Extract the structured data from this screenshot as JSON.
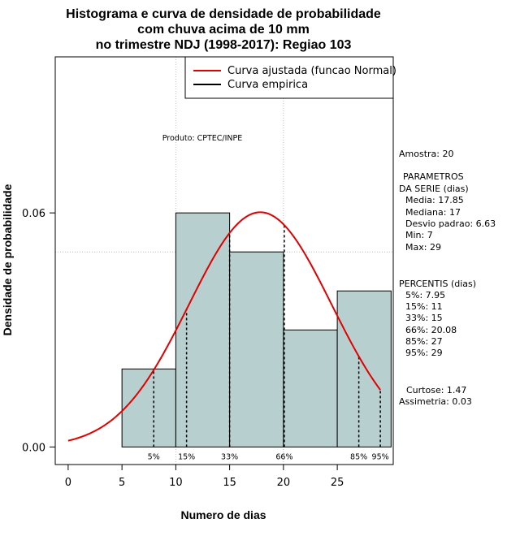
{
  "chart_data": {
    "type": "bar",
    "title_lines": [
      "Histograma e curva de densidade de probabilidade",
      "com chuva acima de 10 mm",
      "no trimestre NDJ (1998-2017): Regiao 103"
    ],
    "xlabel": "Numero de dias",
    "ylabel": "Densidade de probabilidade",
    "xlim": [
      -1.2,
      30.2
    ],
    "ylim": [
      -0.0045,
      0.1
    ],
    "x_ticks": [
      0,
      5,
      10,
      15,
      20,
      25
    ],
    "y_ticks": [
      0.0,
      0.06
    ],
    "y_tick_labels": [
      "0.00",
      "0.06"
    ],
    "grid": true,
    "grid_x": [
      10,
      20
    ],
    "grid_y": [
      0.05,
      0.1
    ],
    "histogram": {
      "bins": [
        {
          "start": 5,
          "end": 10,
          "density": 0.02
        },
        {
          "start": 10,
          "end": 15,
          "density": 0.06
        },
        {
          "start": 15,
          "end": 20,
          "density": 0.05
        },
        {
          "start": 20,
          "end": 25,
          "density": 0.03
        },
        {
          "start": 25,
          "end": 30,
          "density": 0.04
        }
      ],
      "fill": "#b7cfce",
      "edge": "#000000"
    },
    "normal_curve": {
      "mean": 17.85,
      "sd": 6.63,
      "x_start": 0,
      "x_end": 29,
      "color": "#e00000"
    },
    "percentile_markers": [
      {
        "label": "5%",
        "x": 7.95
      },
      {
        "label": "15%",
        "x": 11
      },
      {
        "label": "33%",
        "x": 15
      },
      {
        "label": "66%",
        "x": 20.08
      },
      {
        "label": "85%",
        "x": 27
      },
      {
        "label": "95%",
        "x": 29
      }
    ],
    "legend": {
      "placement": "top-right",
      "entries": [
        {
          "label": "Curva ajustada (funcao Normal)",
          "color": "#e00000"
        },
        {
          "label": "Curva empirica",
          "color": "#000000"
        }
      ]
    },
    "annotation": "Produto: CPTEC/INPE",
    "stats": {
      "amostra": "Amostra: 20",
      "param_title_1": "PARAMETROS",
      "param_title_2": "DA SERIE (dias)",
      "media": "Media: 17.85",
      "mediana": "Mediana: 17",
      "desvio": "Desvio padrao: 6.63",
      "min": "Min: 7",
      "max": "Max: 29",
      "percentis_title": "PERCENTIS (dias)",
      "p5": "5%: 7.95",
      "p15": "15%: 11",
      "p33": "33%: 15",
      "p66": "66%: 20.08",
      "p85": "85%: 27",
      "p95": "95%: 29",
      "curtose": "Curtose: 1.47",
      "assimetria": "Assimetria: 0.03"
    }
  }
}
